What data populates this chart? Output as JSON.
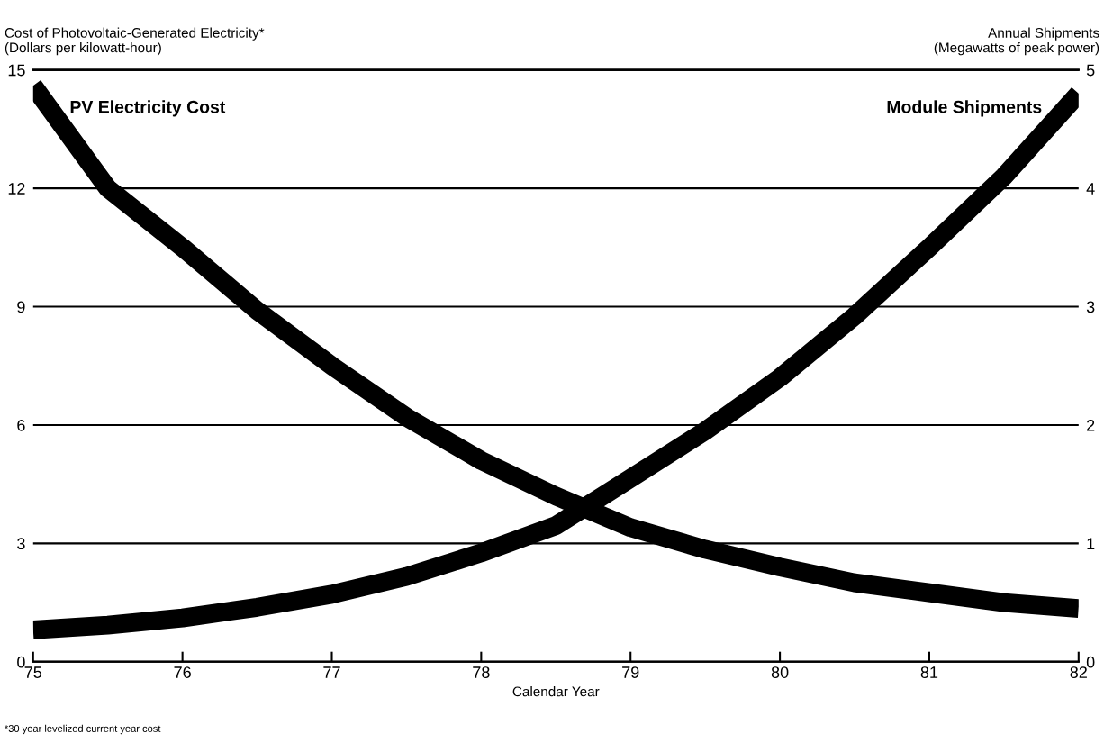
{
  "chart_data": {
    "type": "line",
    "ylabel": "Cost of Photovoltaic-Generated Electricity*\n(Dollars per kilowatt-hour)",
    "y2label": "Annual Shipments\n(Megawatts of peak power)",
    "xlabel": "Calendar Year",
    "x": [
      75,
      75.5,
      76,
      76.5,
      77,
      77.5,
      78,
      78.5,
      79,
      79.5,
      80,
      80.5,
      81,
      81.5,
      82
    ],
    "series": [
      {
        "name": "PV Electricity Cost",
        "color": "#000000",
        "values": [
          14.6,
          12.0,
          10.5,
          8.9,
          7.5,
          6.2,
          5.1,
          4.2,
          3.4,
          2.85,
          2.4,
          2.0,
          1.75,
          1.5,
          1.35
        ]
      },
      {
        "name": "Module Shipments",
        "color": "#000000",
        "axis": "y2",
        "values": [
          0.27,
          0.31,
          0.37,
          0.46,
          0.57,
          0.72,
          0.92,
          1.15,
          1.55,
          1.95,
          2.4,
          2.92,
          3.5,
          4.1,
          4.8
        ]
      }
    ],
    "xlim": [
      75,
      82
    ],
    "xticks": [
      {
        "value": 75,
        "label": "75"
      },
      {
        "value": 76,
        "label": "76"
      },
      {
        "value": 77,
        "label": "77"
      },
      {
        "value": 78,
        "label": "78"
      },
      {
        "value": 79,
        "label": "79"
      },
      {
        "value": 80,
        "label": "80"
      },
      {
        "value": 81,
        "label": "81"
      },
      {
        "value": 82,
        "label": "82"
      }
    ],
    "ylim": [
      0,
      15
    ],
    "yticks": [
      0,
      3,
      6,
      9,
      12,
      15
    ],
    "y2lim": [
      0,
      5
    ],
    "y2ticks": [
      0,
      1,
      2,
      3,
      4,
      5
    ],
    "grid": "y",
    "legend": false,
    "marker": "none",
    "line_style": "solid",
    "annotations": [
      "*30 year levelized current year cost"
    ]
  }
}
